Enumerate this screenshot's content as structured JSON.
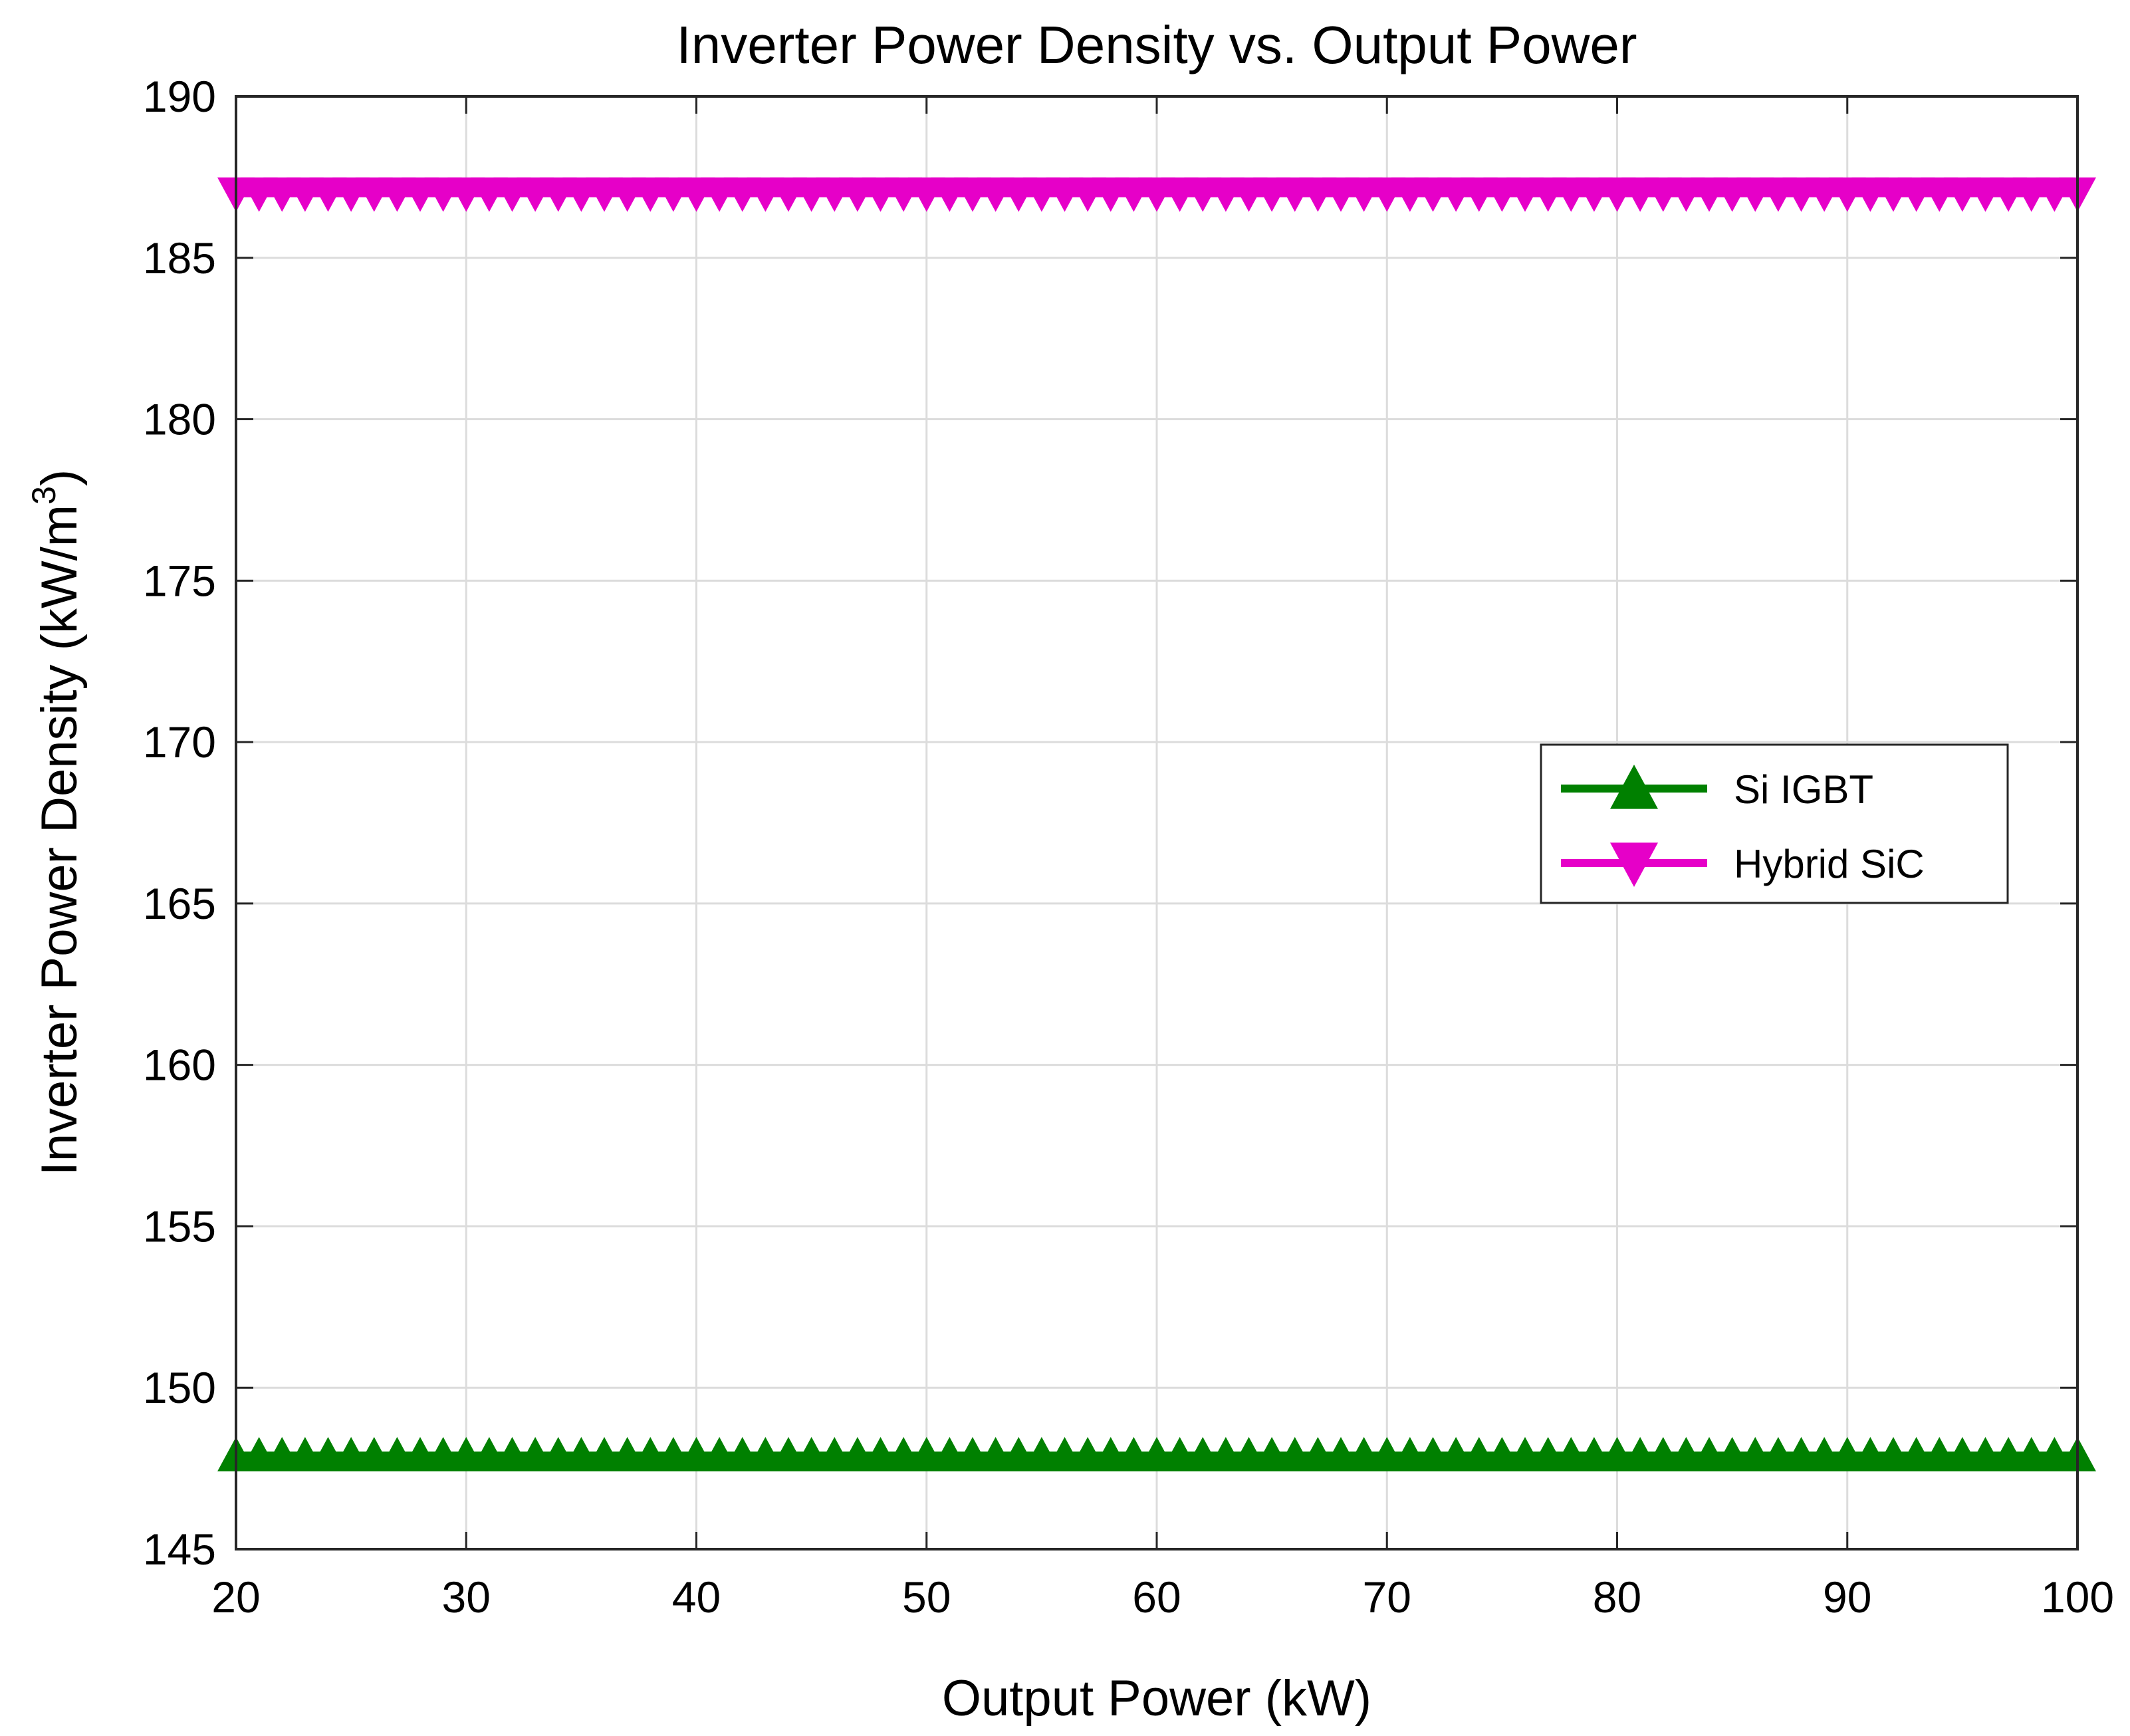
{
  "chart_data": {
    "type": "line",
    "title": "Inverter Power Density vs. Output Power",
    "xlabel": "Output Power (kW)",
    "ylabel": "Inverter Power Density (kW/m",
    "ylabel_superscript": "3",
    "ylabel_suffix": ")",
    "xlim": [
      20,
      100
    ],
    "ylim": [
      145,
      190
    ],
    "xticks": [
      20,
      30,
      40,
      50,
      60,
      70,
      80,
      90,
      100
    ],
    "yticks": [
      145,
      150,
      155,
      160,
      165,
      170,
      175,
      180,
      185,
      190
    ],
    "grid": true,
    "legend_position": "right",
    "x": [
      20,
      21,
      22,
      23,
      24,
      25,
      26,
      27,
      28,
      29,
      30,
      31,
      32,
      33,
      34,
      35,
      36,
      37,
      38,
      39,
      40,
      41,
      42,
      43,
      44,
      45,
      46,
      47,
      48,
      49,
      50,
      51,
      52,
      53,
      54,
      55,
      56,
      57,
      58,
      59,
      60,
      61,
      62,
      63,
      64,
      65,
      66,
      67,
      68,
      69,
      70,
      71,
      72,
      73,
      74,
      75,
      76,
      77,
      78,
      79,
      80,
      81,
      82,
      83,
      84,
      85,
      86,
      87,
      88,
      89,
      90,
      91,
      92,
      93,
      94,
      95,
      96,
      97,
      98,
      99,
      100
    ],
    "series": [
      {
        "name": "Si IGBT",
        "color": "#008000",
        "marker": "triangle-up",
        "y": 147.9
      },
      {
        "name": "Hybrid SiC",
        "color": "#E600C8",
        "marker": "triangle-down",
        "y": 187.0
      }
    ]
  }
}
